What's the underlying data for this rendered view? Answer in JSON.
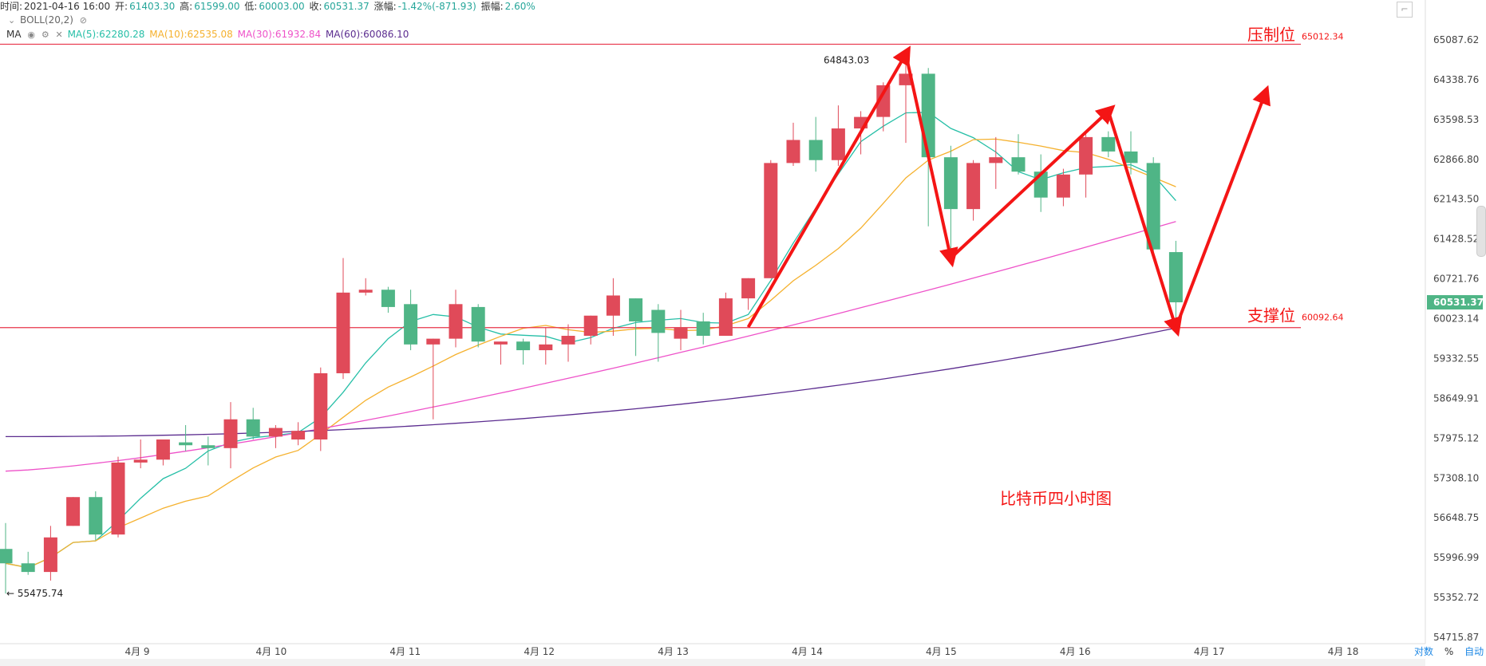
{
  "header": {
    "time_label": "时间:",
    "time_value": "2021-04-16 16:00",
    "open_label": "开:",
    "open_value": "61403.30",
    "high_label": "高:",
    "high_value": "61599.00",
    "low_label": "低:",
    "low_value": "60003.00",
    "close_label": "收:",
    "close_value": "60531.37",
    "change_label": "涨幅:",
    "change_value": "-1.42%(-871.93)",
    "amp_label": "振幅:",
    "amp_value": "2.60%"
  },
  "indicators": {
    "boll": "BOLL(20,2)",
    "ma_label": "MA",
    "ma5": "MA(5):62280.28",
    "ma10": "MA(10):62535.08",
    "ma30": "MA(30):61932.84",
    "ma60": "MA(60):60086.10"
  },
  "controls": {
    "logscale": "对数",
    "percent": "%",
    "auto": "自动"
  },
  "colors": {
    "up": "#e04a59",
    "down": "#4fb586",
    "ma5": "#26bfa7",
    "ma10": "#f5b12e",
    "ma30": "#ee52c9",
    "ma60": "#5b2c8f",
    "annotation": "#f41515",
    "hline": "#e8344a"
  },
  "chart_data": {
    "type": "candlestick",
    "title": "",
    "yticks": [
      "65087.62",
      "64338.76",
      "63598.53",
      "62866.80",
      "62143.50",
      "61428.52",
      "60721.76",
      "60023.14",
      "59332.55",
      "58649.91",
      "57975.12",
      "57308.10",
      "56648.75",
      "55996.99",
      "55352.72",
      "54715.87"
    ],
    "xticks": [
      "4月 9",
      "4月 10",
      "4月 11",
      "4月 12",
      "4月 13",
      "4月 14",
      "4月 15",
      "4月 16",
      "4月 17",
      "4月 18"
    ],
    "ylim": [
      54715.87,
      65087.62
    ],
    "current_price": "60531.37",
    "high_marker": "64843.03",
    "low_marker": "← 55475.74",
    "candles": [
      {
        "o": 56250,
        "h": 56700,
        "l": 55475.74,
        "c": 56000
      },
      {
        "o": 56000,
        "h": 56200,
        "l": 55800,
        "c": 55850
      },
      {
        "o": 55850,
        "h": 56650,
        "l": 55700,
        "c": 56450
      },
      {
        "o": 56650,
        "h": 57100,
        "l": 56650,
        "c": 57150
      },
      {
        "o": 57150,
        "h": 57250,
        "l": 56400,
        "c": 56500
      },
      {
        "o": 56500,
        "h": 57850,
        "l": 56450,
        "c": 57750
      },
      {
        "o": 57750,
        "h": 58150,
        "l": 57650,
        "c": 57800
      },
      {
        "o": 57800,
        "h": 58100,
        "l": 57700,
        "c": 58150
      },
      {
        "o": 58100,
        "h": 58400,
        "l": 57950,
        "c": 58050
      },
      {
        "o": 58050,
        "h": 58200,
        "l": 57700,
        "c": 58000
      },
      {
        "o": 58000,
        "h": 58800,
        "l": 57650,
        "c": 58500
      },
      {
        "o": 58500,
        "h": 58700,
        "l": 58150,
        "c": 58200
      },
      {
        "o": 58200,
        "h": 58400,
        "l": 58000,
        "c": 58350
      },
      {
        "o": 58150,
        "h": 58450,
        "l": 58050,
        "c": 58300
      },
      {
        "o": 58150,
        "h": 59400,
        "l": 57950,
        "c": 59300
      },
      {
        "o": 59300,
        "h": 61300,
        "l": 59200,
        "c": 60700
      },
      {
        "o": 60700,
        "h": 60950,
        "l": 60650,
        "c": 60750
      },
      {
        "o": 60750,
        "h": 60800,
        "l": 60350,
        "c": 60450
      },
      {
        "o": 60500,
        "h": 60750,
        "l": 59700,
        "c": 59800
      },
      {
        "o": 59800,
        "h": 59800,
        "l": 58500,
        "c": 59900
      },
      {
        "o": 59900,
        "h": 60750,
        "l": 59750,
        "c": 60500
      },
      {
        "o": 60450,
        "h": 60500,
        "l": 59750,
        "c": 59850
      },
      {
        "o": 59800,
        "h": 59850,
        "l": 59450,
        "c": 59850
      },
      {
        "o": 59850,
        "h": 59900,
        "l": 59450,
        "c": 59700
      },
      {
        "o": 59700,
        "h": 60100,
        "l": 59450,
        "c": 59800
      },
      {
        "o": 59800,
        "h": 60150,
        "l": 59500,
        "c": 59950
      },
      {
        "o": 59950,
        "h": 60300,
        "l": 59800,
        "c": 60300
      },
      {
        "o": 60300,
        "h": 60950,
        "l": 59950,
        "c": 60650
      },
      {
        "o": 60600,
        "h": 60550,
        "l": 59600,
        "c": 60200
      },
      {
        "o": 60400,
        "h": 60500,
        "l": 59500,
        "c": 60000
      },
      {
        "o": 59900,
        "h": 60400,
        "l": 59700,
        "c": 60100
      },
      {
        "o": 60200,
        "h": 60350,
        "l": 59800,
        "c": 59950
      },
      {
        "o": 59950,
        "h": 60700,
        "l": 59950,
        "c": 60600
      },
      {
        "o": 60600,
        "h": 60900,
        "l": 60400,
        "c": 60950
      },
      {
        "o": 60950,
        "h": 63000,
        "l": 60950,
        "c": 62950
      },
      {
        "o": 62950,
        "h": 63650,
        "l": 62900,
        "c": 63350
      },
      {
        "o": 63350,
        "h": 63750,
        "l": 62800,
        "c": 63000
      },
      {
        "o": 63000,
        "h": 63950,
        "l": 62900,
        "c": 63550
      },
      {
        "o": 63550,
        "h": 63850,
        "l": 63100,
        "c": 63750
      },
      {
        "o": 63750,
        "h": 64350,
        "l": 63500,
        "c": 64300
      },
      {
        "o": 64300,
        "h": 64843.03,
        "l": 63300,
        "c": 64500
      },
      {
        "o": 64500,
        "h": 64600,
        "l": 61850,
        "c": 63050
      },
      {
        "o": 63050,
        "h": 63250,
        "l": 61400,
        "c": 62150
      },
      {
        "o": 62150,
        "h": 63000,
        "l": 61950,
        "c": 62950
      },
      {
        "o": 62950,
        "h": 63400,
        "l": 62500,
        "c": 63050
      },
      {
        "o": 63050,
        "h": 63450,
        "l": 62750,
        "c": 62800
      },
      {
        "o": 62800,
        "h": 63100,
        "l": 62100,
        "c": 62350
      },
      {
        "o": 62350,
        "h": 62850,
        "l": 62200,
        "c": 62750
      },
      {
        "o": 62750,
        "h": 63450,
        "l": 62350,
        "c": 63400
      },
      {
        "o": 63400,
        "h": 63500,
        "l": 63050,
        "c": 63150
      },
      {
        "o": 63150,
        "h": 63500,
        "l": 62750,
        "c": 62950
      },
      {
        "o": 62950,
        "h": 63050,
        "l": 61400,
        "c": 61450
      },
      {
        "o": 61403.3,
        "h": 61599,
        "l": 60003,
        "c": 60531.37
      }
    ],
    "support_level": 60092.64,
    "resistance_level": 65012.34
  },
  "annotations": {
    "resistance_label": "压制位",
    "resistance_value": "65012.34",
    "support_label": "支撑位",
    "support_value": "60092.64",
    "chart_caption": "比特币四小时图"
  }
}
